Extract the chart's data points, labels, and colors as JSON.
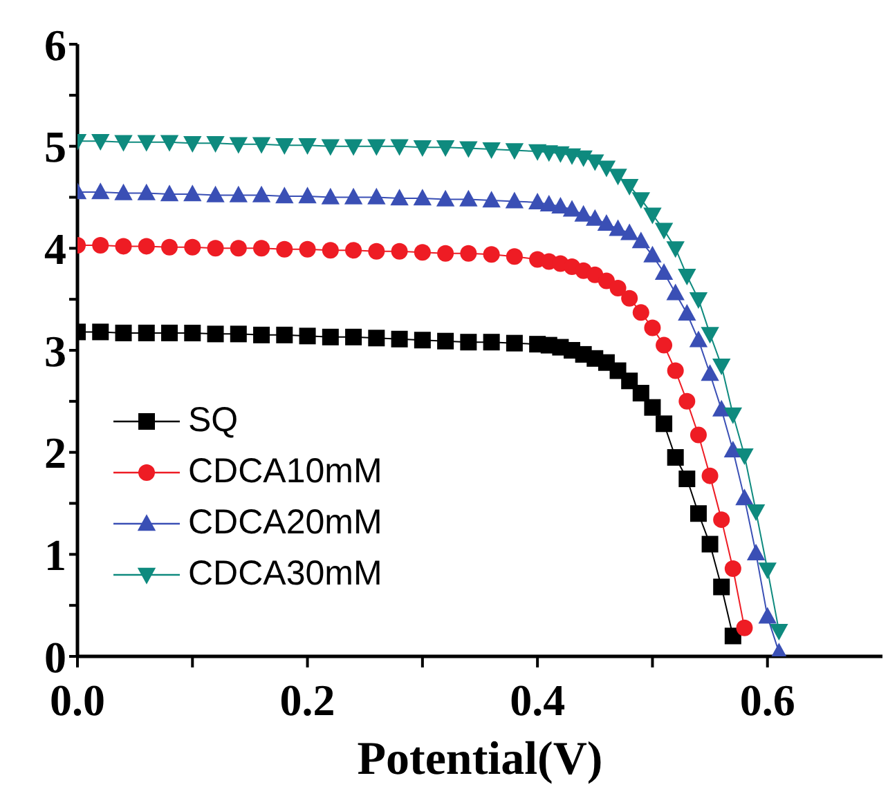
{
  "chart_data": {
    "type": "line",
    "xlabel": "Potential(V)",
    "xlim": [
      0,
      0.7
    ],
    "ylim": [
      0,
      6
    ],
    "xticks": [
      {
        "value": 0,
        "label": "0.0"
      },
      {
        "value": 0.1,
        "label": null
      },
      {
        "value": 0.2,
        "label": "0.2"
      },
      {
        "value": 0.3,
        "label": null
      },
      {
        "value": 0.4,
        "label": "0.4"
      },
      {
        "value": 0.5,
        "label": null
      },
      {
        "value": 0.6,
        "label": "0.6"
      }
    ],
    "yticks": [
      0,
      {
        "value": 0.5,
        "label": null
      },
      1,
      {
        "value": 1.5,
        "label": null
      },
      2,
      {
        "value": 2.5,
        "label": null
      },
      3,
      {
        "value": 3.5,
        "label": null
      },
      4,
      {
        "value": 4.5,
        "label": null
      },
      5,
      {
        "value": 5.5,
        "label": null
      },
      6
    ],
    "legend": "left",
    "line_style": "solid",
    "series": [
      {
        "name": "SQ",
        "color": "#000000",
        "marker": "square",
        "x": [
          0,
          0.02,
          0.04,
          0.06,
          0.08,
          0.1,
          0.12,
          0.14,
          0.16,
          0.18,
          0.2,
          0.22,
          0.24,
          0.26,
          0.28,
          0.3,
          0.32,
          0.34,
          0.36,
          0.38,
          0.4,
          0.41,
          0.42,
          0.43,
          0.44,
          0.45,
          0.46,
          0.47,
          0.48,
          0.49,
          0.5,
          0.51,
          0.52,
          0.53,
          0.54,
          0.55,
          0.56,
          0.57
        ],
        "values": [
          3.18,
          3.18,
          3.17,
          3.17,
          3.17,
          3.17,
          3.16,
          3.16,
          3.15,
          3.15,
          3.14,
          3.13,
          3.13,
          3.12,
          3.11,
          3.1,
          3.09,
          3.08,
          3.08,
          3.07,
          3.06,
          3.05,
          3.03,
          3.0,
          2.96,
          2.92,
          2.88,
          2.8,
          2.7,
          2.58,
          2.44,
          2.28,
          1.95,
          1.74,
          1.4,
          1.1,
          0.68,
          0.2
        ]
      },
      {
        "name": "CDCA10mM",
        "color": "#ee1c24",
        "marker": "circle",
        "x": [
          0,
          0.02,
          0.04,
          0.06,
          0.08,
          0.1,
          0.12,
          0.14,
          0.16,
          0.18,
          0.2,
          0.22,
          0.24,
          0.26,
          0.28,
          0.3,
          0.32,
          0.34,
          0.36,
          0.38,
          0.4,
          0.41,
          0.42,
          0.43,
          0.44,
          0.45,
          0.46,
          0.47,
          0.48,
          0.49,
          0.5,
          0.51,
          0.52,
          0.53,
          0.54,
          0.55,
          0.56,
          0.57,
          0.58
        ],
        "values": [
          4.03,
          4.03,
          4.02,
          4.02,
          4.01,
          4.01,
          4.0,
          4.0,
          4.0,
          3.99,
          3.99,
          3.98,
          3.98,
          3.97,
          3.97,
          3.96,
          3.95,
          3.95,
          3.94,
          3.92,
          3.89,
          3.87,
          3.85,
          3.82,
          3.78,
          3.74,
          3.68,
          3.61,
          3.51,
          3.37,
          3.22,
          3.05,
          2.8,
          2.5,
          2.17,
          1.77,
          1.34,
          0.86,
          0.28
        ]
      },
      {
        "name": "CDCA20mM",
        "color": "#3a4fb5",
        "marker": "triangle",
        "x": [
          0,
          0.02,
          0.04,
          0.06,
          0.08,
          0.1,
          0.12,
          0.14,
          0.16,
          0.18,
          0.2,
          0.22,
          0.24,
          0.26,
          0.28,
          0.3,
          0.32,
          0.34,
          0.36,
          0.38,
          0.4,
          0.41,
          0.42,
          0.43,
          0.44,
          0.45,
          0.46,
          0.47,
          0.48,
          0.49,
          0.5,
          0.51,
          0.52,
          0.53,
          0.54,
          0.55,
          0.56,
          0.57,
          0.58,
          0.59,
          0.6,
          0.61
        ],
        "values": [
          4.55,
          4.55,
          4.54,
          4.54,
          4.53,
          4.53,
          4.52,
          4.52,
          4.52,
          4.51,
          4.51,
          4.5,
          4.5,
          4.5,
          4.49,
          4.49,
          4.48,
          4.48,
          4.47,
          4.46,
          4.45,
          4.43,
          4.41,
          4.38,
          4.33,
          4.29,
          4.24,
          4.19,
          4.15,
          4.07,
          3.93,
          3.76,
          3.56,
          3.36,
          3.1,
          2.77,
          2.42,
          2.02,
          1.55,
          1.01,
          0.39,
          0.04
        ]
      },
      {
        "name": "CDCA30mM",
        "color": "#0e8a7e",
        "marker": "triangle-down",
        "x": [
          0,
          0.02,
          0.04,
          0.06,
          0.08,
          0.1,
          0.12,
          0.14,
          0.16,
          0.18,
          0.2,
          0.22,
          0.24,
          0.26,
          0.28,
          0.3,
          0.32,
          0.34,
          0.36,
          0.38,
          0.4,
          0.41,
          0.42,
          0.43,
          0.44,
          0.45,
          0.46,
          0.47,
          0.48,
          0.49,
          0.5,
          0.51,
          0.52,
          0.53,
          0.54,
          0.55,
          0.56,
          0.57,
          0.58,
          0.59,
          0.6,
          0.61
        ],
        "values": [
          5.05,
          5.05,
          5.04,
          5.04,
          5.04,
          5.03,
          5.03,
          5.02,
          5.02,
          5.01,
          5.01,
          5.0,
          5.0,
          5.0,
          5.0,
          4.99,
          4.99,
          4.98,
          4.97,
          4.96,
          4.95,
          4.94,
          4.93,
          4.91,
          4.89,
          4.85,
          4.79,
          4.71,
          4.61,
          4.48,
          4.33,
          4.18,
          4.0,
          3.73,
          3.5,
          3.16,
          2.85,
          2.37,
          1.97,
          1.42,
          0.85,
          0.25
        ]
      }
    ]
  }
}
